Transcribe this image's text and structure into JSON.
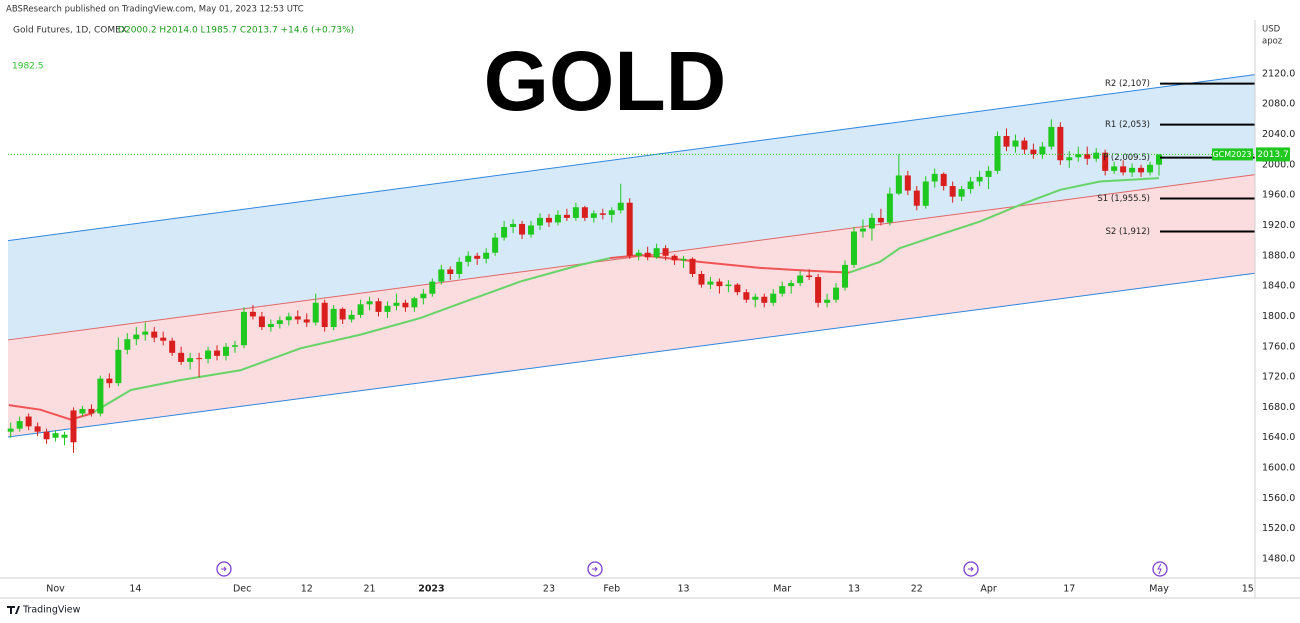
{
  "header": {
    "published": "ABSResearch published on TradingView.com, May 01, 2023 12:53 UTC",
    "symbol": "Gold Futures, 1D, COMEX",
    "quote": "O2000.2 H2014.0 L1985.7 C2013.7 +14.6 (+0.73%)"
  },
  "footer": {
    "logo": "TradingView"
  },
  "chart_data": {
    "type": "candlestick",
    "title": "GOLD",
    "currency": "USD",
    "unit": "apoz",
    "xlim": [
      -0.3,
      138.7
    ],
    "ylim": [
      1455,
      2191
    ],
    "xticks": [
      {
        "value": 5,
        "label": "Nov"
      },
      {
        "value": 13.9,
        "label": "14"
      },
      {
        "value": 25.8,
        "label": "Dec"
      },
      {
        "value": 33,
        "label": "12"
      },
      {
        "value": 40,
        "label": "21"
      },
      {
        "value": 46.9,
        "label": "2023",
        "bold": true
      },
      {
        "value": 60,
        "label": "23"
      },
      {
        "value": 67,
        "label": "Feb"
      },
      {
        "value": 75,
        "label": "13"
      },
      {
        "value": 86,
        "label": "Mar"
      },
      {
        "value": 94,
        "label": "13"
      },
      {
        "value": 101,
        "label": "22"
      },
      {
        "value": 109,
        "label": "Apr"
      },
      {
        "value": 118,
        "label": "17"
      },
      {
        "value": 128,
        "label": "May"
      },
      {
        "value": 137.9,
        "label": "15"
      }
    ],
    "yticks": [
      {
        "value": 1480,
        "label": "1480.0"
      },
      {
        "value": 1520,
        "label": "1520.0"
      },
      {
        "value": 1560,
        "label": "1560.0"
      },
      {
        "value": 1600,
        "label": "1600.0"
      },
      {
        "value": 1640,
        "label": "1640.0"
      },
      {
        "value": 1680,
        "label": "1680.0"
      },
      {
        "value": 1720,
        "label": "1720.0"
      },
      {
        "value": 1760,
        "label": "1760.0"
      },
      {
        "value": 1800,
        "label": "1800.0"
      },
      {
        "value": 1840,
        "label": "1840.0"
      },
      {
        "value": 1880,
        "label": "1880.0"
      },
      {
        "value": 1920,
        "label": "1920.0"
      },
      {
        "value": 1960,
        "label": "1960.0"
      },
      {
        "value": 2000,
        "label": "2000.0"
      },
      {
        "value": 2040,
        "label": "2040.0"
      },
      {
        "value": 2080,
        "label": "2080.0"
      },
      {
        "value": 2120,
        "label": "2120.0"
      }
    ],
    "grid": false,
    "up_color": "#1ec81e",
    "down_color": "#d91e1e",
    "ohlc": [
      [
        1648,
        1660,
        1640,
        1652
      ],
      [
        1652,
        1668,
        1648,
        1662
      ],
      [
        1668,
        1672,
        1650,
        1655
      ],
      [
        1655,
        1660,
        1642,
        1648
      ],
      [
        1648,
        1652,
        1632,
        1638
      ],
      [
        1640,
        1650,
        1635,
        1646
      ],
      [
        1640,
        1648,
        1630,
        1644
      ],
      [
        1676,
        1680,
        1620,
        1634
      ],
      [
        1672,
        1682,
        1668,
        1678
      ],
      [
        1678,
        1684,
        1668,
        1672
      ],
      [
        1672,
        1722,
        1668,
        1718
      ],
      [
        1718,
        1725,
        1706,
        1712
      ],
      [
        1712,
        1772,
        1708,
        1756
      ],
      [
        1756,
        1778,
        1750,
        1770
      ],
      [
        1770,
        1786,
        1762,
        1776
      ],
      [
        1776,
        1792,
        1768,
        1780
      ],
      [
        1780,
        1786,
        1766,
        1772
      ],
      [
        1772,
        1780,
        1762,
        1768
      ],
      [
        1768,
        1772,
        1748,
        1752
      ],
      [
        1752,
        1760,
        1736,
        1740
      ],
      [
        1740,
        1752,
        1730,
        1745
      ],
      [
        1745,
        1752,
        1720,
        1744
      ],
      [
        1744,
        1760,
        1738,
        1755
      ],
      [
        1755,
        1762,
        1742,
        1748
      ],
      [
        1748,
        1765,
        1742,
        1760
      ],
      [
        1760,
        1768,
        1752,
        1762
      ],
      [
        1762,
        1812,
        1758,
        1806
      ],
      [
        1806,
        1815,
        1796,
        1800
      ],
      [
        1800,
        1806,
        1782,
        1786
      ],
      [
        1786,
        1796,
        1780,
        1790
      ],
      [
        1790,
        1800,
        1784,
        1795
      ],
      [
        1795,
        1805,
        1788,
        1800
      ],
      [
        1800,
        1808,
        1790,
        1796
      ],
      [
        1796,
        1804,
        1786,
        1792
      ],
      [
        1792,
        1830,
        1788,
        1818
      ],
      [
        1818,
        1822,
        1780,
        1786
      ],
      [
        1786,
        1815,
        1782,
        1810
      ],
      [
        1810,
        1812,
        1790,
        1796
      ],
      [
        1796,
        1808,
        1792,
        1802
      ],
      [
        1802,
        1822,
        1798,
        1816
      ],
      [
        1816,
        1826,
        1808,
        1820
      ],
      [
        1820,
        1824,
        1800,
        1806
      ],
      [
        1806,
        1820,
        1798,
        1814
      ],
      [
        1814,
        1830,
        1808,
        1818
      ],
      [
        1818,
        1822,
        1806,
        1812
      ],
      [
        1812,
        1826,
        1806,
        1824
      ],
      [
        1824,
        1836,
        1816,
        1830
      ],
      [
        1830,
        1850,
        1826,
        1846
      ],
      [
        1846,
        1868,
        1842,
        1862
      ],
      [
        1862,
        1866,
        1848,
        1856
      ],
      [
        1856,
        1878,
        1850,
        1872
      ],
      [
        1872,
        1886,
        1866,
        1880
      ],
      [
        1880,
        1884,
        1868,
        1876
      ],
      [
        1876,
        1890,
        1870,
        1884
      ],
      [
        1884,
        1910,
        1880,
        1904
      ],
      [
        1904,
        1926,
        1900,
        1918
      ],
      [
        1918,
        1928,
        1910,
        1922
      ],
      [
        1922,
        1926,
        1902,
        1908
      ],
      [
        1908,
        1926,
        1904,
        1920
      ],
      [
        1920,
        1936,
        1914,
        1930
      ],
      [
        1930,
        1935,
        1918,
        1924
      ],
      [
        1924,
        1940,
        1920,
        1934
      ],
      [
        1934,
        1942,
        1926,
        1930
      ],
      [
        1930,
        1950,
        1926,
        1944
      ],
      [
        1944,
        1946,
        1926,
        1930
      ],
      [
        1930,
        1940,
        1924,
        1936
      ],
      [
        1936,
        1942,
        1928,
        1934
      ],
      [
        1934,
        1944,
        1924,
        1940
      ],
      [
        1940,
        1975,
        1936,
        1950
      ],
      [
        1950,
        1956,
        1876,
        1880
      ],
      [
        1880,
        1888,
        1874,
        1884
      ],
      [
        1884,
        1892,
        1874,
        1878
      ],
      [
        1878,
        1896,
        1876,
        1890
      ],
      [
        1890,
        1894,
        1874,
        1880
      ],
      [
        1880,
        1882,
        1868,
        1874
      ],
      [
        1874,
        1880,
        1864,
        1876
      ],
      [
        1876,
        1878,
        1852,
        1856
      ],
      [
        1856,
        1860,
        1838,
        1842
      ],
      [
        1842,
        1852,
        1836,
        1846
      ],
      [
        1846,
        1850,
        1830,
        1840
      ],
      [
        1840,
        1848,
        1832,
        1842
      ],
      [
        1842,
        1844,
        1828,
        1832
      ],
      [
        1832,
        1836,
        1818,
        1822
      ],
      [
        1822,
        1830,
        1812,
        1826
      ],
      [
        1826,
        1830,
        1812,
        1818
      ],
      [
        1818,
        1836,
        1814,
        1830
      ],
      [
        1830,
        1846,
        1826,
        1840
      ],
      [
        1840,
        1848,
        1830,
        1844
      ],
      [
        1844,
        1860,
        1840,
        1854
      ],
      [
        1854,
        1862,
        1848,
        1852
      ],
      [
        1852,
        1856,
        1812,
        1818
      ],
      [
        1818,
        1830,
        1812,
        1822
      ],
      [
        1822,
        1844,
        1818,
        1838
      ],
      [
        1838,
        1874,
        1834,
        1868
      ],
      [
        1868,
        1918,
        1864,
        1912
      ],
      [
        1912,
        1928,
        1904,
        1916
      ],
      [
        1916,
        1936,
        1900,
        1930
      ],
      [
        1930,
        1942,
        1920,
        1924
      ],
      [
        1924,
        1970,
        1920,
        1962
      ],
      [
        1962,
        2014,
        1960,
        1986
      ],
      [
        1986,
        1992,
        1960,
        1966
      ],
      [
        1966,
        1972,
        1940,
        1946
      ],
      [
        1946,
        1985,
        1942,
        1978
      ],
      [
        1978,
        1995,
        1970,
        1988
      ],
      [
        1988,
        1990,
        1966,
        1972
      ],
      [
        1972,
        1978,
        1950,
        1958
      ],
      [
        1958,
        1972,
        1952,
        1968
      ],
      [
        1968,
        1984,
        1962,
        1978
      ],
      [
        1978,
        1992,
        1972,
        1984
      ],
      [
        1984,
        1998,
        1968,
        1992
      ],
      [
        1992,
        2044,
        1988,
        2038
      ],
      [
        2038,
        2048,
        2018,
        2024
      ],
      [
        2024,
        2040,
        2016,
        2032
      ],
      [
        2032,
        2036,
        2014,
        2020
      ],
      [
        2020,
        2028,
        2008,
        2014
      ],
      [
        2014,
        2030,
        2008,
        2024
      ],
      [
        2024,
        2060,
        2020,
        2050
      ],
      [
        2050,
        2056,
        2000,
        2006
      ],
      [
        2006,
        2018,
        1996,
        2010
      ],
      [
        2010,
        2024,
        2004,
        2014
      ],
      [
        2014,
        2024,
        2000,
        2008
      ],
      [
        2008,
        2022,
        2004,
        2016
      ],
      [
        2016,
        2020,
        1986,
        1992
      ],
      [
        1992,
        2004,
        1988,
        1998
      ],
      [
        1998,
        2006,
        1986,
        1990
      ],
      [
        1990,
        2002,
        1984,
        1996
      ],
      [
        1996,
        2000,
        1984,
        1990
      ],
      [
        1990,
        2004,
        1986,
        2000
      ],
      [
        2000.2,
        2014.0,
        1985.7,
        2013.7
      ]
    ],
    "moving_averages": [
      {
        "color": "#f05454",
        "x": [
          -0.2,
          3.3,
          6.7,
          9
        ],
        "values": [
          1683,
          1677,
          1664,
          1672
        ]
      },
      {
        "color": "#66d466",
        "x": [
          9,
          13.4,
          18.9,
          25.6,
          32.3,
          39,
          45.7,
          51.2,
          56.8,
          63.5,
          66.8
        ],
        "values": [
          1672,
          1703,
          1716,
          1729,
          1758,
          1776,
          1798,
          1822,
          1846,
          1868,
          1877
        ]
      },
      {
        "color": "#f05454",
        "x": [
          66.8,
          70.2,
          76.8,
          83.5,
          88,
          91.3,
          93.5
        ],
        "values": [
          1877,
          1881,
          1872,
          1864,
          1861,
          1859,
          1858
        ]
      },
      {
        "color": "#66d466",
        "x": [
          93.5,
          96.9,
          99.1,
          103.6,
          108,
          112.5,
          117,
          121.4,
          128
        ],
        "values": [
          1858,
          1872,
          1890,
          1908,
          1925,
          1947,
          1967,
          1978,
          1982.5
        ]
      }
    ],
    "channel": {
      "upper": [
        1900,
        2119
      ],
      "middle": [
        1769,
        1987
      ],
      "lower": [
        1641,
        1857
      ],
      "upper_color": "#2e86de",
      "middle_color": "#e06666",
      "upper_fill": "#d6e9f8",
      "lower_fill": "#fbdcdf"
    },
    "pivots": [
      {
        "label": "R2 (2,107)",
        "value": 2107
      },
      {
        "label": "R1 (2,053)",
        "value": 2053
      },
      {
        "label": "P (2,009.5)",
        "value": 2009.5
      },
      {
        "label": "S1 (1,955.5)",
        "value": 1955.5
      },
      {
        "label": "S2 (1,912)",
        "value": 1912
      }
    ],
    "symbol_tag": "GCM2023",
    "tag_color": "#1ec81e"
  }
}
